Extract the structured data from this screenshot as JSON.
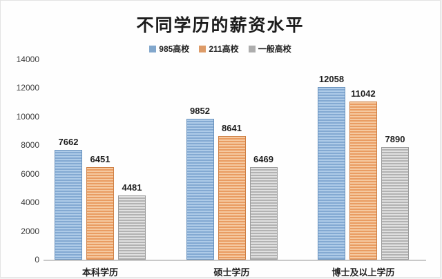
{
  "chart_data": {
    "type": "bar",
    "title": "不同学历的薪资水平",
    "categories": [
      "本科学历",
      "硕士学历",
      "博士及以上学历"
    ],
    "series": [
      {
        "name": "985高校",
        "values": [
          7662,
          9852,
          12058
        ],
        "legend_color": "#82a7cc",
        "fill_light": "#aecbe8",
        "fill_dark": "#83a9d2",
        "border": "#6690bc"
      },
      {
        "name": "211高校",
        "values": [
          6451,
          8641,
          11042
        ],
        "legend_color": "#dd9b68",
        "fill_light": "#f5c9a0",
        "fill_dark": "#e99c62",
        "border": "#ce7f44"
      },
      {
        "name": "一般高校",
        "values": [
          4481,
          6469,
          7890
        ],
        "legend_color": "#adadad",
        "fill_light": "#e0e0e0",
        "fill_dark": "#b2b2b2",
        "border": "#9c9c9c"
      }
    ],
    "ylim": [
      0,
      14000
    ],
    "yticks": [
      0,
      2000,
      4000,
      6000,
      8000,
      10000,
      12000,
      14000
    ],
    "grid": false,
    "legend_position": "top",
    "axis_line_color": "#c9c9c9"
  }
}
